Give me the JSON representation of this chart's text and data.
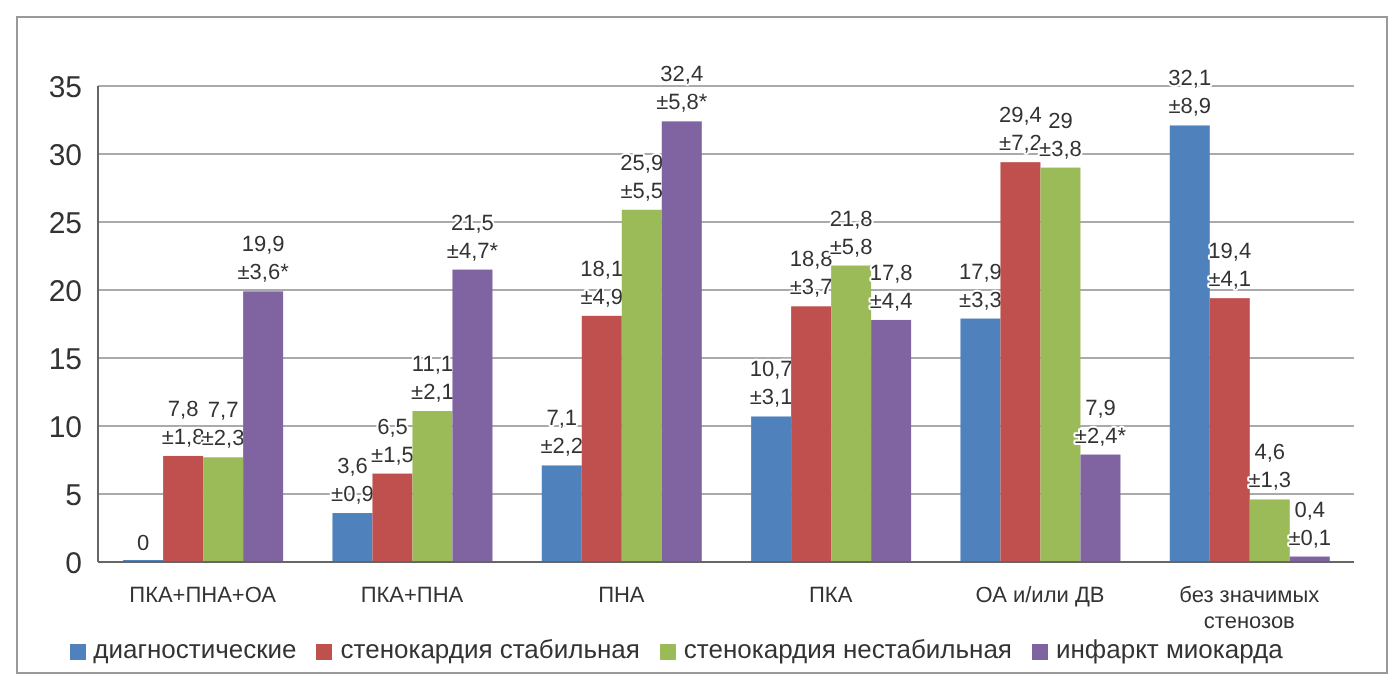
{
  "chart_data": {
    "type": "bar",
    "categories": [
      "ПКА+ПНА+ОА",
      "ПКА+ПНА",
      "ПНА",
      "ПКА",
      "ОА и/или ДВ",
      "без значимых стенозов"
    ],
    "series": [
      {
        "name": "диагностические",
        "color": "#4f81bd",
        "values": [
          0,
          3.6,
          7.1,
          10.7,
          17.9,
          32.1
        ],
        "value_labels": [
          "0",
          "3,6\n±0,9",
          "7,1\n±2,2",
          "10,7\n±3,1",
          "17,9\n±3,3",
          "32,1\n±8,9"
        ]
      },
      {
        "name": "стенокардия стабильная",
        "color": "#c0504d",
        "values": [
          7.8,
          6.5,
          18.1,
          18.8,
          29.4,
          19.4
        ],
        "value_labels": [
          "7,8\n±1,8",
          "6,5\n±1,5",
          "18,1\n±4,9",
          "18,8\n±3,7",
          "29,4\n±7,2",
          "19,4\n±4,1"
        ]
      },
      {
        "name": "стенокардия нестабильная",
        "color": "#9bbb59",
        "values": [
          7.7,
          11.1,
          25.9,
          21.8,
          29,
          4.6
        ],
        "value_labels": [
          "7,7\n±2,3",
          "11,1\n±2,1",
          "25,9\n±5,5",
          "21,8\n±5,8",
          "29\n±3,8",
          "4,6\n±1,3"
        ]
      },
      {
        "name": "инфаркт миокарда",
        "color": "#8064a2",
        "values": [
          19.9,
          21.5,
          32.4,
          17.8,
          7.9,
          0.4
        ],
        "value_labels": [
          "19,9\n±3,6*",
          "21,5\n±4,7*",
          "32,4\n±5,8*",
          "17,8\n±4,4",
          "7,9\n±2,4*",
          "0,4\n±0,1"
        ]
      }
    ],
    "ylim": [
      0,
      35
    ],
    "yticks": [
      0,
      5,
      10,
      15,
      20,
      25,
      30,
      35
    ],
    "grid": "y",
    "legend": "bottom"
  }
}
